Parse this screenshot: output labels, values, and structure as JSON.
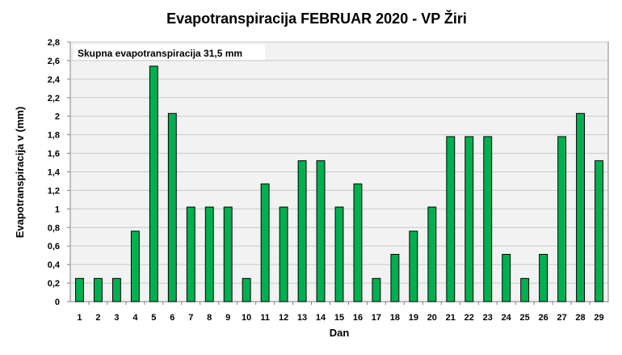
{
  "chart_data": {
    "type": "bar",
    "title": "Evapotranspiracija  FEBRUAR 2020 - VP Žiri",
    "xlabel": "Dan",
    "ylabel": "Evapotranspiracija v  (mm)",
    "annotation": "Skupna evapotranspiracija 31,5 mm",
    "ylim": [
      0,
      2.8
    ],
    "y_ticks": [
      "0",
      "0,2",
      "0,4",
      "0,6",
      "0,8",
      "1",
      "1,2",
      "1,4",
      "1,6",
      "1,8",
      "2",
      "2,2",
      "2,4",
      "2,6",
      "2,8"
    ],
    "categories": [
      "1",
      "2",
      "3",
      "4",
      "5",
      "6",
      "7",
      "8",
      "9",
      "10",
      "11",
      "12",
      "13",
      "14",
      "15",
      "16",
      "17",
      "18",
      "19",
      "20",
      "21",
      "22",
      "23",
      "24",
      "25",
      "26",
      "27",
      "28",
      "29"
    ],
    "values": [
      0.25,
      0.25,
      0.25,
      0.76,
      2.54,
      2.03,
      1.02,
      1.02,
      1.02,
      0.25,
      1.27,
      1.02,
      1.52,
      1.52,
      1.02,
      1.27,
      0.25,
      0.51,
      0.76,
      1.02,
      1.78,
      1.78,
      1.78,
      0.51,
      0.25,
      0.51,
      1.78,
      2.03,
      1.52
    ],
    "grid": true,
    "legend": "none",
    "colors": {
      "bar_fill": "#00b050",
      "bar_stroke": "#000000",
      "plot_bg": "#f2f2f2",
      "grid": "#c8c8c8"
    }
  }
}
